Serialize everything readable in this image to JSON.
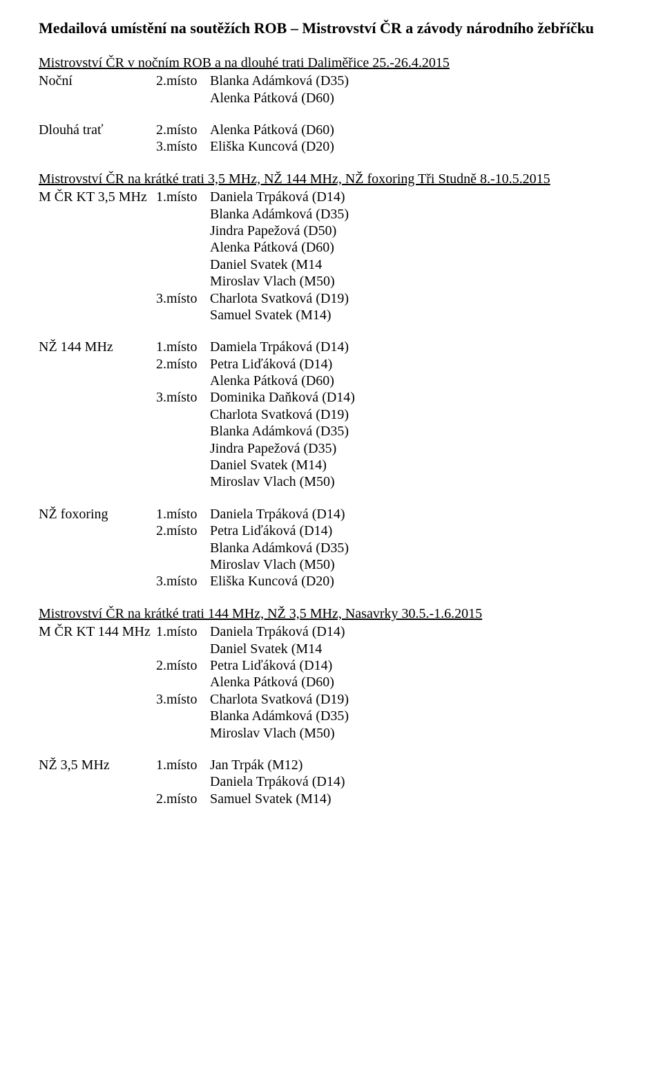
{
  "title": "Medailová umístění na soutěžích ROB – Mistrovství ČR a závody národního žebříčku",
  "sections": [
    {
      "heading": "Mistrovství ČR v nočním ROB a na dlouhé trati Daliměřice 25.-26.4.2015",
      "groups": [
        {
          "label": "Noční",
          "entries": [
            {
              "place": "2.místo",
              "lines": [
                "Blanka Adámková (D35)",
                "Alenka Pátková (D60)"
              ]
            }
          ]
        },
        {
          "label": "Dlouhá trať",
          "entries": [
            {
              "place": "2.místo",
              "lines": [
                "Alenka Pátková (D60)"
              ]
            },
            {
              "place": "3.místo",
              "lines": [
                "Eliška Kuncová (D20)"
              ]
            }
          ]
        }
      ]
    },
    {
      "heading": "Mistrovství ČR na krátké trati 3,5 MHz, NŽ 144 MHz, NŽ foxoring Tři Studně 8.-10.5.2015",
      "groups": [
        {
          "label": "M ČR KT 3,5 MHz",
          "entries": [
            {
              "place": "1.místo",
              "lines": [
                "Daniela Trpáková (D14)",
                "Blanka Adámková (D35)",
                "Jindra Papežová (D50)",
                "Alenka Pátková (D60)",
                "Daniel Svatek (M14",
                "Miroslav Vlach (M50)"
              ]
            },
            {
              "place": "3.místo",
              "lines": [
                "Charlota Svatková (D19)",
                "Samuel Svatek (M14)"
              ]
            }
          ]
        },
        {
          "label": "NŽ 144 MHz",
          "entries": [
            {
              "place": "1.místo",
              "lines": [
                "Damiela Trpáková (D14)"
              ]
            },
            {
              "place": "2.místo",
              "lines": [
                "Petra Liďáková (D14)",
                "Alenka Pátková (D60)"
              ]
            },
            {
              "place": "3.místo",
              "lines": [
                "Dominika Daňková (D14)",
                "Charlota Svatková (D19)",
                "Blanka Adámková (D35)",
                "Jindra Papežová (D35)",
                "Daniel Svatek (M14)",
                "Miroslav Vlach (M50)"
              ]
            }
          ]
        },
        {
          "label": "NŽ foxoring",
          "entries": [
            {
              "place": "1.místo",
              "lines": [
                "Daniela Trpáková (D14)"
              ]
            },
            {
              "place": "2.místo",
              "lines": [
                "Petra Liďáková (D14)",
                "Blanka Adámková (D35)",
                "Miroslav Vlach (M50)"
              ]
            },
            {
              "place": "3.místo",
              "lines": [
                "Eliška Kuncová (D20)"
              ]
            }
          ]
        }
      ]
    },
    {
      "heading": "Mistrovství ČR na krátké trati 144 MHz, NŽ 3,5 MHz, Nasavrky 30.5.-1.6.2015",
      "groups": [
        {
          "label": "M ČR KT 144 MHz",
          "entries": [
            {
              "place": "1.místo",
              "lines": [
                "Daniela Trpáková (D14)",
                "Daniel Svatek (M14"
              ]
            },
            {
              "place": "2.místo",
              "lines": [
                "Petra Liďáková (D14)",
                "Alenka Pátková (D60)"
              ]
            },
            {
              "place": "3.místo",
              "lines": [
                "Charlota Svatková (D19)",
                "Blanka Adámková (D35)",
                "Miroslav Vlach (M50)"
              ]
            }
          ]
        },
        {
          "label": "NŽ 3,5 MHz",
          "entries": [
            {
              "place": "1.místo",
              "lines": [
                "Jan Trpák (M12)",
                "Daniela Trpáková (D14)"
              ]
            },
            {
              "place": "2.místo",
              "lines": [
                "Samuel Svatek (M14)"
              ]
            }
          ]
        }
      ]
    }
  ]
}
